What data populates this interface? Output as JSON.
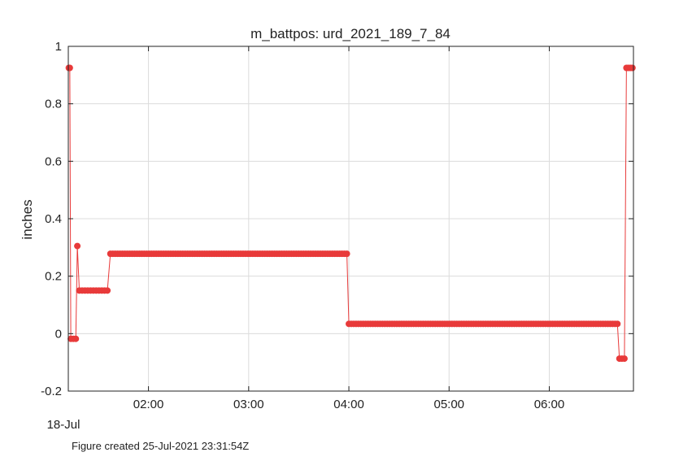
{
  "chart_data": {
    "type": "scatter",
    "title": "m_battpos: urd_2021_189_7_84",
    "xlabel": "",
    "ylabel": "inches",
    "date_label": "18-Jul",
    "caption": "Figure created 25-Jul-2021 23:31:54Z",
    "x_unit": "time of day (hours), 18-Jul-2021",
    "xlim": [
      1.2,
      6.84
    ],
    "ylim": [
      -0.2,
      1.0
    ],
    "x_ticks": [
      {
        "value": 2,
        "label": "02:00"
      },
      {
        "value": 3,
        "label": "03:00"
      },
      {
        "value": 4,
        "label": "04:00"
      },
      {
        "value": 5,
        "label": "05:00"
      },
      {
        "value": 6,
        "label": "06:00"
      }
    ],
    "y_ticks": [
      {
        "value": 1.0,
        "label": "1"
      },
      {
        "value": 0.8,
        "label": "0.8"
      },
      {
        "value": 0.6,
        "label": "0.6"
      },
      {
        "value": 0.4,
        "label": "0.4"
      },
      {
        "value": 0.2,
        "label": "0.2"
      },
      {
        "value": 0.0,
        "label": "0"
      },
      {
        "value": -0.2,
        "label": "-0.2"
      }
    ],
    "grid": true,
    "legend": "none",
    "line_color": "#e83a3a",
    "marker_color": "#e83a3a",
    "series": [
      {
        "segments": [
          {
            "x_start": 1.205,
            "x_end": 1.215,
            "step": 0.01,
            "y": 0.925
          },
          {
            "x_start": 1.225,
            "x_end": 1.275,
            "step": 0.025,
            "y": -0.018
          },
          {
            "x_start": 1.29,
            "x_end": 1.29,
            "step": 0.01,
            "y": 0.305
          },
          {
            "x_start": 1.31,
            "x_end": 1.59,
            "step": 0.028,
            "y": 0.15
          },
          {
            "x_start": 1.62,
            "x_end": 3.98,
            "step": 0.024,
            "y": 0.278
          },
          {
            "x_start": 4.0,
            "x_end": 6.68,
            "step": 0.024,
            "y": 0.034
          },
          {
            "x_start": 6.7,
            "x_end": 6.75,
            "step": 0.025,
            "y": -0.087
          },
          {
            "x_start": 6.77,
            "x_end": 6.83,
            "step": 0.02,
            "y": 0.925
          }
        ]
      }
    ]
  }
}
